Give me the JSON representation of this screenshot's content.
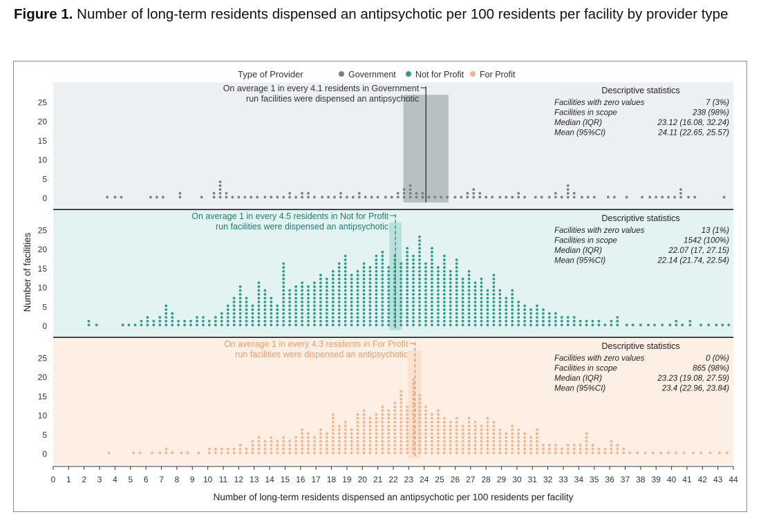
{
  "figure": {
    "label": "Figure 1.",
    "title": "Number of long-term residents dispensed an antipsychotic per 100 residents per facility by provider type"
  },
  "chart_data": {
    "type": "scatter",
    "subtype": "dot-histogram",
    "xlabel": "Number of long-term residents dispensed an antipsychotic per 100 residents per facility",
    "ylabel": "Number of facilities",
    "xlim": [
      0,
      44
    ],
    "x_ticks": [
      "0",
      "1",
      "2",
      "3",
      "4",
      "5",
      "6",
      "7",
      "8",
      "9",
      "10",
      "11",
      "12",
      "13",
      "14",
      "15",
      "16",
      "17",
      "18",
      "19",
      "20",
      "21",
      "22",
      "23",
      "24",
      "25",
      "26",
      "27",
      "28",
      "29",
      "30",
      "31",
      "32",
      "33",
      "34",
      "35",
      "36",
      "37",
      "38",
      "39",
      "40",
      "41",
      "42",
      "43",
      "44"
    ],
    "y_ticks": [
      "0",
      "5",
      "10",
      "15",
      "20",
      "25"
    ],
    "ylim": [
      0,
      27
    ],
    "legend": {
      "title": "Type of Provider",
      "position": "top",
      "items": [
        {
          "name": "Government",
          "color": "#7c7f7f"
        },
        {
          "name": "Not for Profit",
          "color": "#2e9c8f"
        },
        {
          "name": "For Profit",
          "color": "#f3b48c"
        }
      ]
    },
    "panels": [
      {
        "name": "Government",
        "color": "#7c7f7f",
        "bg": "#ecf0f3",
        "annotation": [
          "On average 1 in every 4.1 residents in Government",
          "run facilities were dispensed an antipsychotic"
        ],
        "mean": 24.11,
        "ci": [
          22.65,
          25.57
        ],
        "stats_title": "Descriptive statistics",
        "stats": [
          {
            "label": "Facilities with zero values",
            "value": "7 (3%)"
          },
          {
            "label": "Facilities in scope",
            "value": "238 (98%)"
          },
          {
            "label": "Median (IQR)",
            "value": "23.12 (16.08, 32.24)"
          },
          {
            "label": "Mean (95%CI)",
            "value": "24.11 (22.65, 25.57)"
          }
        ],
        "bins": [
          [
            3.5,
            1
          ],
          [
            4.0,
            1
          ],
          [
            4.4,
            1
          ],
          [
            6.3,
            1
          ],
          [
            6.7,
            1
          ],
          [
            7.1,
            1
          ],
          [
            8.2,
            2
          ],
          [
            9.6,
            1
          ],
          [
            10.4,
            2
          ],
          [
            10.8,
            5
          ],
          [
            11.2,
            2
          ],
          [
            11.6,
            1
          ],
          [
            12.0,
            1
          ],
          [
            12.4,
            1
          ],
          [
            12.8,
            1
          ],
          [
            13.2,
            1
          ],
          [
            13.7,
            1
          ],
          [
            14.1,
            1
          ],
          [
            14.5,
            1
          ],
          [
            14.9,
            1
          ],
          [
            15.3,
            2
          ],
          [
            15.7,
            1
          ],
          [
            16.1,
            2
          ],
          [
            16.5,
            2
          ],
          [
            16.9,
            1
          ],
          [
            17.4,
            1
          ],
          [
            17.8,
            1
          ],
          [
            18.2,
            1
          ],
          [
            18.6,
            2
          ],
          [
            19.0,
            1
          ],
          [
            19.4,
            1
          ],
          [
            19.8,
            2
          ],
          [
            20.2,
            1
          ],
          [
            20.6,
            1
          ],
          [
            21.0,
            1
          ],
          [
            21.5,
            1
          ],
          [
            21.9,
            1
          ],
          [
            22.3,
            2
          ],
          [
            22.7,
            3
          ],
          [
            23.1,
            4
          ],
          [
            23.5,
            2
          ],
          [
            23.9,
            2
          ],
          [
            24.3,
            1
          ],
          [
            24.7,
            1
          ],
          [
            25.1,
            1
          ],
          [
            25.5,
            1
          ],
          [
            26.0,
            1
          ],
          [
            26.4,
            1
          ],
          [
            26.8,
            2
          ],
          [
            27.2,
            3
          ],
          [
            27.6,
            2
          ],
          [
            28.0,
            1
          ],
          [
            28.4,
            1
          ],
          [
            28.9,
            1
          ],
          [
            29.3,
            1
          ],
          [
            29.7,
            1
          ],
          [
            30.1,
            2
          ],
          [
            30.5,
            1
          ],
          [
            31.2,
            1
          ],
          [
            31.6,
            1
          ],
          [
            32.1,
            1
          ],
          [
            32.5,
            2
          ],
          [
            32.9,
            1
          ],
          [
            33.3,
            4
          ],
          [
            33.7,
            2
          ],
          [
            34.2,
            1
          ],
          [
            34.6,
            1
          ],
          [
            35.0,
            1
          ],
          [
            35.9,
            1
          ],
          [
            36.3,
            1
          ],
          [
            37.1,
            1
          ],
          [
            38.1,
            1
          ],
          [
            38.6,
            1
          ],
          [
            39.0,
            1
          ],
          [
            39.4,
            1
          ],
          [
            39.8,
            1
          ],
          [
            40.2,
            1
          ],
          [
            40.6,
            3
          ],
          [
            41.1,
            1
          ],
          [
            41.5,
            1
          ],
          [
            43.4,
            1
          ]
        ]
      },
      {
        "name": "Not for Profit",
        "color": "#2e9c8f",
        "bg": "#e2f3f2",
        "annotation": [
          "On average 1 in every 4.5 residents in Not for Profit",
          "run facilities were dispensed an antipsychotic"
        ],
        "mean": 22.14,
        "ci": [
          21.74,
          22.54
        ],
        "stats_title": "Descriptive statistics",
        "stats": [
          {
            "label": "Facilities with zero values",
            "value": "13 (1%)"
          },
          {
            "label": "Facilities in scope",
            "value": "1542 (100%)"
          },
          {
            "label": "Median (IQR)",
            "value": "22.07 (17, 27.15)"
          },
          {
            "label": "Mean (95%CI)",
            "value": "22.14 (21.74, 22.54)"
          }
        ],
        "bins": [
          [
            2.3,
            2
          ],
          [
            2.8,
            1
          ],
          [
            4.5,
            1
          ],
          [
            4.9,
            1
          ],
          [
            5.3,
            1
          ],
          [
            5.7,
            2
          ],
          [
            6.1,
            3
          ],
          [
            6.5,
            2
          ],
          [
            6.9,
            3
          ],
          [
            7.3,
            6
          ],
          [
            7.7,
            4
          ],
          [
            8.1,
            2
          ],
          [
            8.5,
            2
          ],
          [
            8.9,
            2
          ],
          [
            9.3,
            3
          ],
          [
            9.7,
            3
          ],
          [
            10.1,
            2
          ],
          [
            10.5,
            3
          ],
          [
            10.9,
            4
          ],
          [
            11.3,
            6
          ],
          [
            11.7,
            8
          ],
          [
            12.1,
            11
          ],
          [
            12.5,
            8
          ],
          [
            12.9,
            6
          ],
          [
            13.3,
            12
          ],
          [
            13.7,
            10
          ],
          [
            14.1,
            8
          ],
          [
            14.5,
            6
          ],
          [
            14.9,
            17
          ],
          [
            15.3,
            10
          ],
          [
            15.7,
            11
          ],
          [
            16.1,
            12
          ],
          [
            16.5,
            11
          ],
          [
            16.9,
            12
          ],
          [
            17.3,
            14
          ],
          [
            17.7,
            13
          ],
          [
            18.1,
            15
          ],
          [
            18.5,
            17
          ],
          [
            18.9,
            19
          ],
          [
            19.3,
            14
          ],
          [
            19.7,
            15
          ],
          [
            20.1,
            17
          ],
          [
            20.5,
            16
          ],
          [
            20.9,
            19
          ],
          [
            21.3,
            20
          ],
          [
            21.7,
            16
          ],
          [
            22.1,
            19
          ],
          [
            22.5,
            17
          ],
          [
            22.9,
            21
          ],
          [
            23.3,
            19
          ],
          [
            23.7,
            24
          ],
          [
            24.1,
            17
          ],
          [
            24.5,
            21
          ],
          [
            24.9,
            16
          ],
          [
            25.3,
            19
          ],
          [
            25.7,
            15
          ],
          [
            26.1,
            18
          ],
          [
            26.5,
            13
          ],
          [
            26.9,
            15
          ],
          [
            27.3,
            12
          ],
          [
            27.7,
            13
          ],
          [
            28.1,
            10
          ],
          [
            28.5,
            14
          ],
          [
            28.9,
            10
          ],
          [
            29.3,
            8
          ],
          [
            29.7,
            10
          ],
          [
            30.1,
            7
          ],
          [
            30.5,
            6
          ],
          [
            30.9,
            5
          ],
          [
            31.3,
            6
          ],
          [
            31.7,
            5
          ],
          [
            32.1,
            4
          ],
          [
            32.5,
            4
          ],
          [
            32.9,
            3
          ],
          [
            33.3,
            3
          ],
          [
            33.7,
            3
          ],
          [
            34.1,
            2
          ],
          [
            34.5,
            2
          ],
          [
            34.9,
            2
          ],
          [
            35.3,
            2
          ],
          [
            35.7,
            1
          ],
          [
            36.1,
            2
          ],
          [
            36.5,
            3
          ],
          [
            37.1,
            1
          ],
          [
            37.5,
            1
          ],
          [
            38.0,
            1
          ],
          [
            38.5,
            1
          ],
          [
            38.9,
            1
          ],
          [
            39.4,
            1
          ],
          [
            39.9,
            1
          ],
          [
            40.3,
            2
          ],
          [
            40.7,
            1
          ],
          [
            41.2,
            2
          ],
          [
            41.9,
            1
          ],
          [
            42.4,
            1
          ],
          [
            42.9,
            1
          ],
          [
            43.3,
            1
          ],
          [
            43.7,
            1
          ]
        ]
      },
      {
        "name": "For Profit",
        "color": "#f3b48c",
        "bg": "#fdefe4",
        "annotation": [
          "On average 1 in every 4.3 residents in For Profit",
          "run facilities were dispensed an antipsychotic"
        ],
        "mean": 23.4,
        "ci": [
          22.96,
          23.84
        ],
        "stats_title": "Descriptive statistics",
        "stats": [
          {
            "label": "Facilities with zero values",
            "value": "0 (0%)"
          },
          {
            "label": "Facilities in scope",
            "value": "865 (98%)"
          },
          {
            "label": "Median (IQR)",
            "value": "23.23 (19.08, 27.59)"
          },
          {
            "label": "Mean (95%CI)",
            "value": "23.4 (22.96, 23.84)"
          }
        ],
        "bins": [
          [
            3.6,
            1
          ],
          [
            5.2,
            1
          ],
          [
            5.6,
            1
          ],
          [
            6.4,
            1
          ],
          [
            6.9,
            1
          ],
          [
            7.3,
            2
          ],
          [
            7.7,
            1
          ],
          [
            8.3,
            1
          ],
          [
            8.7,
            1
          ],
          [
            9.4,
            1
          ],
          [
            10.1,
            2
          ],
          [
            10.5,
            2
          ],
          [
            10.9,
            2
          ],
          [
            11.3,
            2
          ],
          [
            11.7,
            2
          ],
          [
            12.1,
            3
          ],
          [
            12.5,
            2
          ],
          [
            12.9,
            4
          ],
          [
            13.3,
            5
          ],
          [
            13.7,
            4
          ],
          [
            14.1,
            5
          ],
          [
            14.5,
            4
          ],
          [
            14.9,
            5
          ],
          [
            15.3,
            4
          ],
          [
            15.7,
            5
          ],
          [
            16.1,
            7
          ],
          [
            16.5,
            6
          ],
          [
            16.9,
            5
          ],
          [
            17.3,
            7
          ],
          [
            17.7,
            6
          ],
          [
            18.1,
            11
          ],
          [
            18.5,
            8
          ],
          [
            18.9,
            9
          ],
          [
            19.3,
            7
          ],
          [
            19.7,
            11
          ],
          [
            20.1,
            12
          ],
          [
            20.5,
            10
          ],
          [
            20.9,
            11
          ],
          [
            21.3,
            13
          ],
          [
            21.7,
            12
          ],
          [
            22.1,
            14
          ],
          [
            22.5,
            17
          ],
          [
            22.9,
            13
          ],
          [
            23.3,
            20
          ],
          [
            23.7,
            16
          ],
          [
            24.1,
            13
          ],
          [
            24.5,
            11
          ],
          [
            24.9,
            12
          ],
          [
            25.3,
            10
          ],
          [
            25.7,
            9
          ],
          [
            26.1,
            10
          ],
          [
            26.5,
            8
          ],
          [
            26.9,
            10
          ],
          [
            27.3,
            9
          ],
          [
            27.7,
            8
          ],
          [
            28.1,
            10
          ],
          [
            28.5,
            9
          ],
          [
            28.9,
            7
          ],
          [
            29.3,
            6
          ],
          [
            29.7,
            8
          ],
          [
            30.1,
            7
          ],
          [
            30.5,
            6
          ],
          [
            30.9,
            5
          ],
          [
            31.3,
            7
          ],
          [
            31.7,
            3
          ],
          [
            32.1,
            3
          ],
          [
            32.5,
            3
          ],
          [
            32.9,
            2
          ],
          [
            33.3,
            3
          ],
          [
            33.7,
            3
          ],
          [
            34.1,
            3
          ],
          [
            34.5,
            6
          ],
          [
            34.9,
            3
          ],
          [
            35.3,
            2
          ],
          [
            35.7,
            2
          ],
          [
            36.1,
            4
          ],
          [
            36.5,
            3
          ],
          [
            36.9,
            2
          ],
          [
            37.3,
            1
          ],
          [
            37.8,
            1
          ],
          [
            38.3,
            1
          ],
          [
            38.8,
            1
          ],
          [
            39.3,
            1
          ],
          [
            39.8,
            1
          ],
          [
            40.3,
            1
          ],
          [
            40.8,
            1
          ],
          [
            41.4,
            1
          ],
          [
            41.9,
            1
          ],
          [
            42.5,
            1
          ],
          [
            43.1,
            1
          ],
          [
            43.6,
            1
          ]
        ]
      }
    ]
  }
}
